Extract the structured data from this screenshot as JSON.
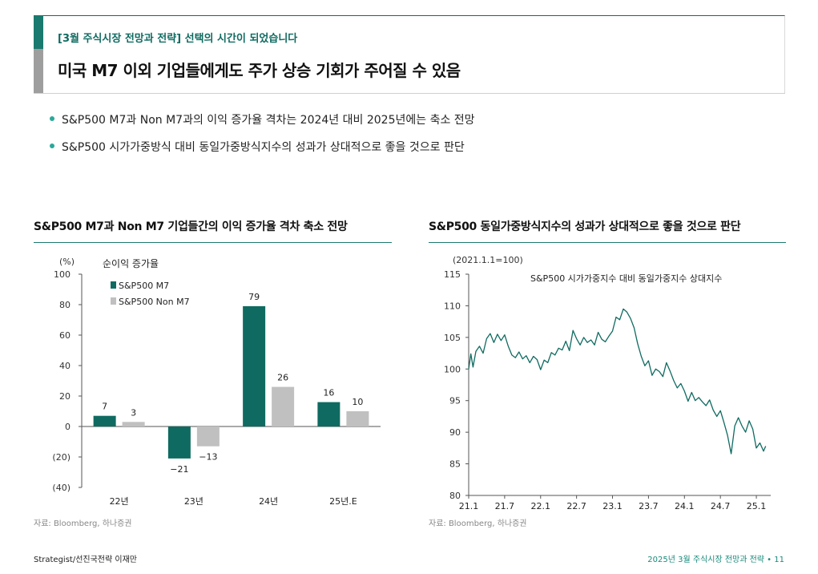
{
  "header": {
    "subtitle": "[3월 주식시장 전망과 전략] 선택의 시간이 되었습니다",
    "title": "미국 M7 이외 기업들에게도 주가 상승 기회가 주어질 수 있음"
  },
  "bullets": [
    "S&P500 M7과 Non M7과의 이익 증가율 격차는 2024년 대비 2025년에는 축소 전망",
    "S&P500 시가가중방식 대비 동일가중방식지수의 성과가 상대적으로 좋을 것으로 판단"
  ],
  "colors": {
    "accent": "#1a7a6f",
    "bar_m7": "#0f6b61",
    "bar_nonm7": "#c0c0c0",
    "line": "#0f6b61"
  },
  "left_chart": {
    "title": "S&P500 M7과 Non M7 기업들간의 이익 증가율 격차 축소 전망",
    "unit": "(%)",
    "inner_title": "순이익 증가율",
    "source": "자료: Bloomberg, 하나증권"
  },
  "right_chart": {
    "title": "S&P500 동일가중방식지수의 성과가 상대적으로 좋을 것으로 판단",
    "unit": "(2021.1.1=100)",
    "inner_title": "S&P500 시가가중지수 대비 동일가중지수 상대지수",
    "source": "자료: Bloomberg, 하나증권"
  },
  "footer": {
    "left": "Strategist/선진국전략 이재만",
    "right": "2025년 3월 주식시장 전망과 전략 • 11"
  },
  "chart_data": [
    {
      "type": "bar",
      "title": "S&P500 M7과 Non M7 기업들간의 이익 증가율 격차 축소 전망",
      "ylabel": "(%)",
      "categories": [
        "22년",
        "23년",
        "24년",
        "25년.E"
      ],
      "series": [
        {
          "name": "S&P500 M7",
          "values": [
            7,
            -21,
            79,
            16
          ],
          "labels": [
            "7",
            "−21",
            "79",
            "16"
          ]
        },
        {
          "name": "S&P500 Non M7",
          "values": [
            3,
            -13,
            26,
            10
          ],
          "labels": [
            "3",
            "−13",
            "26",
            "10"
          ]
        }
      ],
      "ylim": [
        -40,
        100
      ],
      "yticks": [
        100,
        80,
        60,
        40,
        20,
        0,
        -20,
        -40
      ],
      "ytick_labels": [
        "100",
        "80",
        "60",
        "40",
        "20",
        "0",
        "(20)",
        "(40)"
      ],
      "legend_position": "top-left",
      "grid": false
    },
    {
      "type": "line",
      "title": "S&P500 동일가중방식지수의 성과가 상대적으로 좋을 것으로 판단",
      "ylabel": "(2021.1.1=100)",
      "series": [
        {
          "name": "S&P500 시가가중지수 대비 동일가중지수 상대지수",
          "x": [
            2021.0,
            2021.03,
            2021.06,
            2021.1,
            2021.15,
            2021.2,
            2021.25,
            2021.3,
            2021.35,
            2021.4,
            2021.45,
            2021.5,
            2021.55,
            2021.6,
            2021.65,
            2021.7,
            2021.75,
            2021.8,
            2021.85,
            2021.9,
            2021.95,
            2022.0,
            2022.05,
            2022.1,
            2022.15,
            2022.2,
            2022.25,
            2022.3,
            2022.35,
            2022.4,
            2022.45,
            2022.5,
            2022.55,
            2022.6,
            2022.65,
            2022.7,
            2022.75,
            2022.8,
            2022.85,
            2022.9,
            2022.95,
            2023.0,
            2023.05,
            2023.1,
            2023.15,
            2023.2,
            2023.25,
            2023.3,
            2023.35,
            2023.4,
            2023.45,
            2023.5,
            2023.55,
            2023.6,
            2023.65,
            2023.7,
            2023.75,
            2023.8,
            2023.85,
            2023.9,
            2023.95,
            2024.0,
            2024.05,
            2024.1,
            2024.15,
            2024.2,
            2024.25,
            2024.3,
            2024.35,
            2024.4,
            2024.45,
            2024.5,
            2024.55,
            2024.6,
            2024.65,
            2024.7,
            2024.75,
            2024.8,
            2024.85,
            2024.9,
            2024.95,
            2025.0,
            2025.05,
            2025.1,
            2025.13
          ],
          "y": [
            100,
            102.4,
            100.3,
            102.8,
            103.6,
            102.5,
            104.8,
            105.6,
            104.2,
            105.5,
            104.5,
            105.4,
            103.6,
            102.2,
            101.8,
            102.7,
            101.6,
            102.1,
            101.0,
            102.0,
            101.5,
            99.9,
            101.4,
            101.0,
            102.6,
            102.2,
            103.3,
            103.0,
            104.4,
            102.9,
            106.1,
            104.8,
            103.8,
            105.0,
            104.2,
            104.6,
            103.8,
            105.8,
            104.7,
            104.3,
            105.2,
            106.0,
            108.2,
            107.8,
            109.5,
            109.0,
            108.0,
            106.5,
            104.0,
            102.0,
            100.5,
            101.3,
            99.0,
            100.0,
            99.6,
            98.8,
            101.0,
            99.7,
            98.2,
            97.0,
            97.7,
            96.5,
            94.9,
            96.3,
            95.0,
            95.5,
            94.8,
            94.2,
            95.1,
            93.5,
            92.5,
            93.4,
            91.5,
            89.5,
            86.6,
            91.0,
            92.3,
            91.0,
            90.0,
            91.8,
            90.5,
            87.5,
            88.3,
            87.0,
            87.8
          ]
        }
      ],
      "xticks": [
        2021.0,
        2021.5,
        2022.0,
        2022.5,
        2023.0,
        2023.5,
        2024.0,
        2024.5,
        2025.0
      ],
      "xtick_labels": [
        "21.1",
        "21.7",
        "22.1",
        "22.7",
        "23.1",
        "23.7",
        "24.1",
        "24.7",
        "25.1"
      ],
      "yticks": [
        115,
        110,
        105,
        100,
        95,
        90,
        85,
        80
      ],
      "ylim": [
        80,
        115
      ],
      "grid": false
    }
  ]
}
